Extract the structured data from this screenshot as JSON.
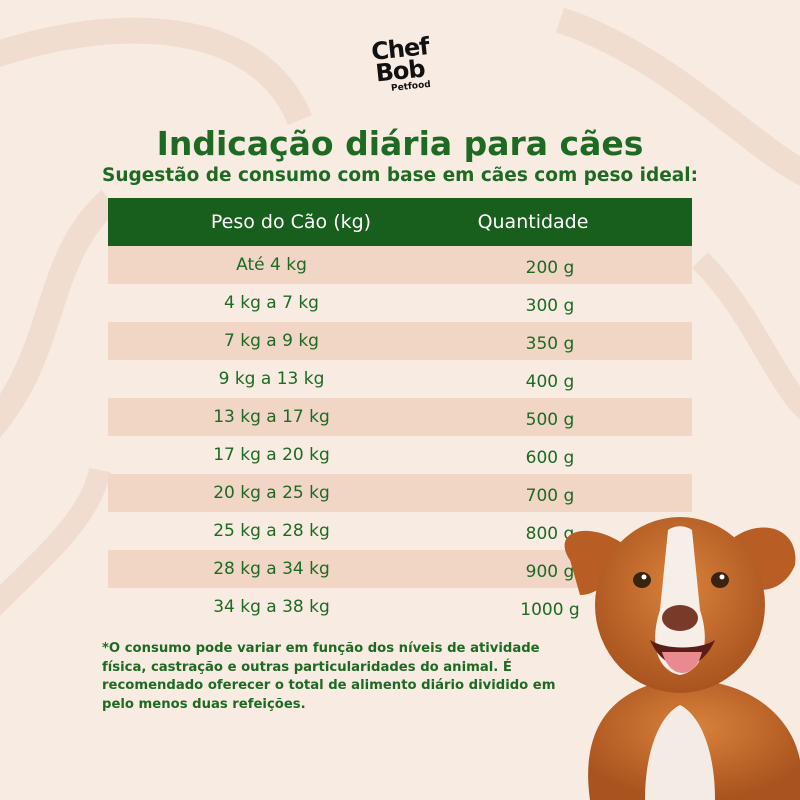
{
  "brand": {
    "logo_line1": "Chef",
    "logo_line2": "Bob",
    "logo_sub": "Petfood"
  },
  "title": "Indicação diária para cães",
  "subtitle": "Sugestão de consumo com base em cães com peso ideal:",
  "table": {
    "headers": [
      "Peso do Cão (kg)",
      "Quantidade"
    ],
    "rows": [
      [
        "Até 4 kg",
        "200 g"
      ],
      [
        "4 kg a 7 kg",
        "300 g"
      ],
      [
        "7 kg a 9 kg",
        "350 g"
      ],
      [
        "9 kg a 13 kg",
        "400 g"
      ],
      [
        "13 kg a 17 kg",
        "500 g"
      ],
      [
        "17 kg a 20 kg",
        "600 g"
      ],
      [
        "20 kg a 25 kg",
        "700 g"
      ],
      [
        "25 kg a 28 kg",
        "800 g"
      ],
      [
        "28 kg a 34 kg",
        "900 g"
      ],
      [
        "34 kg a 38 kg",
        "1000 g"
      ]
    ]
  },
  "footnote": "*O consumo pode variar em função dos níveis de atividade física, castração e outras particularidades do animal. É recomendado oferecer o total de alimento diário dividido em pelo menos duas refeições.",
  "colors": {
    "background": "#f7ebe2",
    "brand_green": "#1e6a23",
    "header_green": "#185f1e",
    "row_shade": "#f1d6c5"
  },
  "image": "dog-photo"
}
